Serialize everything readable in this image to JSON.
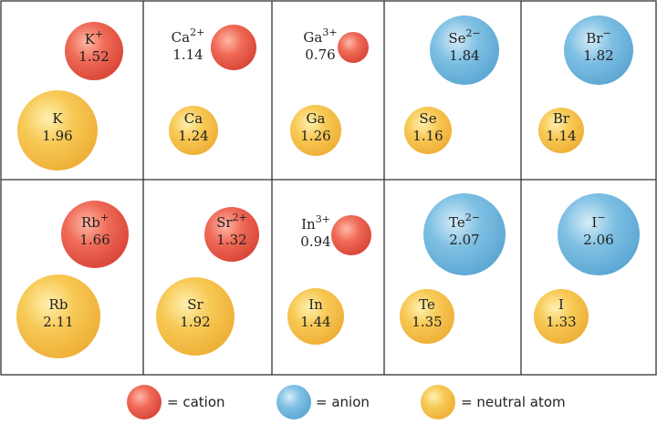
{
  "colors": {
    "cation": "#e8584b",
    "anion": "#6fb5dd",
    "neutral": "#f3be45",
    "grid": "#333333"
  },
  "ions": [
    {
      "id": "k-ion",
      "symbol": "K",
      "charge": "+",
      "radius": "1.52",
      "kind": "cation"
    },
    {
      "id": "k-atom",
      "symbol": "K",
      "charge": "",
      "radius": "1.96",
      "kind": "neutral"
    },
    {
      "id": "ca-ion",
      "symbol": "Ca",
      "charge": "2+",
      "radius": "1.14",
      "kind": "cation"
    },
    {
      "id": "ca-atom",
      "symbol": "Ca",
      "charge": "",
      "radius": "1.24",
      "kind": "neutral"
    },
    {
      "id": "ga-ion",
      "symbol": "Ga",
      "charge": "3+",
      "radius": "0.76",
      "kind": "cation"
    },
    {
      "id": "ga-atom",
      "symbol": "Ga",
      "charge": "",
      "radius": "1.26",
      "kind": "neutral"
    },
    {
      "id": "se-ion",
      "symbol": "Se",
      "charge": "2−",
      "radius": "1.84",
      "kind": "anion"
    },
    {
      "id": "se-atom",
      "symbol": "Se",
      "charge": "",
      "radius": "1.16",
      "kind": "neutral"
    },
    {
      "id": "br-ion",
      "symbol": "Br",
      "charge": "−",
      "radius": "1.82",
      "kind": "anion"
    },
    {
      "id": "br-atom",
      "symbol": "Br",
      "charge": "",
      "radius": "1.14",
      "kind": "neutral"
    },
    {
      "id": "rb-ion",
      "symbol": "Rb",
      "charge": "+",
      "radius": "1.66",
      "kind": "cation"
    },
    {
      "id": "rb-atom",
      "symbol": "Rb",
      "charge": "",
      "radius": "2.11",
      "kind": "neutral"
    },
    {
      "id": "sr-ion",
      "symbol": "Sr",
      "charge": "2+",
      "radius": "1.32",
      "kind": "cation"
    },
    {
      "id": "sr-atom",
      "symbol": "Sr",
      "charge": "",
      "radius": "1.92",
      "kind": "neutral"
    },
    {
      "id": "in-ion",
      "symbol": "In",
      "charge": "3+",
      "radius": "0.94",
      "kind": "cation"
    },
    {
      "id": "in-atom",
      "symbol": "In",
      "charge": "",
      "radius": "1.44",
      "kind": "neutral"
    },
    {
      "id": "te-ion",
      "symbol": "Te",
      "charge": "2−",
      "radius": "2.07",
      "kind": "anion"
    },
    {
      "id": "te-atom",
      "symbol": "Te",
      "charge": "",
      "radius": "1.35",
      "kind": "neutral"
    },
    {
      "id": "i-ion",
      "symbol": "I",
      "charge": "−",
      "radius": "2.06",
      "kind": "anion"
    },
    {
      "id": "i-atom",
      "symbol": "I",
      "charge": "",
      "radius": "1.33",
      "kind": "neutral"
    }
  ],
  "legend": {
    "cation": "= cation",
    "anion": "= anion",
    "neutral": "= neutral atom"
  }
}
